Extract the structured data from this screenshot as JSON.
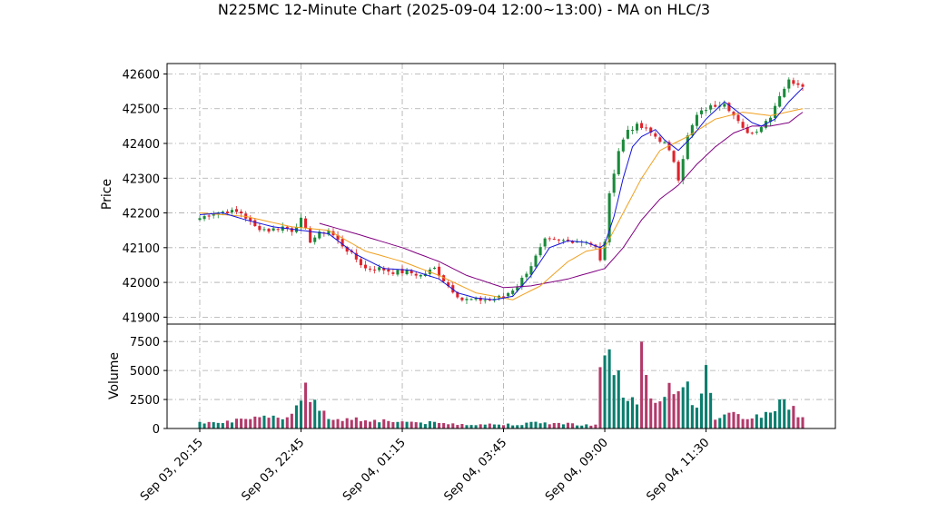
{
  "chart_data": {
    "type": "candlestick",
    "title": "N225MC 12-Minute Chart (2025-09-04 12:00~13:00) - MA on HLC/3",
    "price_panel": {
      "ylabel": "Price",
      "yticks": [
        41900,
        42000,
        42100,
        42200,
        42300,
        42400,
        42500,
        42600
      ],
      "ylim": [
        41880,
        42630
      ]
    },
    "volume_panel": {
      "ylabel": "Volume",
      "yticks": [
        0,
        2500,
        5000,
        7500
      ],
      "ylim": [
        0,
        9000
      ]
    },
    "xticks": [
      {
        "index": 0,
        "label": "Sep 03, 20:15"
      },
      {
        "index": 22,
        "label": "Sep 03, 22:45"
      },
      {
        "index": 44,
        "label": "Sep 04, 01:15"
      },
      {
        "index": 66,
        "label": "Sep 04, 03:45"
      },
      {
        "index": 88,
        "label": "Sep 04, 09:00"
      },
      {
        "index": 110,
        "label": "Sep 04, 11:30"
      }
    ],
    "price_anchors": [
      [
        0,
        42185
      ],
      [
        3,
        42200
      ],
      [
        6,
        42205
      ],
      [
        9,
        42200
      ],
      [
        12,
        42160
      ],
      [
        15,
        42150
      ],
      [
        18,
        42160
      ],
      [
        20,
        42150
      ],
      [
        22,
        42180
      ],
      [
        24,
        42120
      ],
      [
        26,
        42140
      ],
      [
        28,
        42150
      ],
      [
        30,
        42120
      ],
      [
        33,
        42080
      ],
      [
        36,
        42040
      ],
      [
        39,
        42040
      ],
      [
        42,
        42030
      ],
      [
        45,
        42030
      ],
      [
        48,
        42020
      ],
      [
        51,
        42040
      ],
      [
        54,
        41990
      ],
      [
        57,
        41950
      ],
      [
        60,
        41950
      ],
      [
        63,
        41950
      ],
      [
        66,
        41960
      ],
      [
        69,
        41990
      ],
      [
        72,
        42050
      ],
      [
        75,
        42120
      ],
      [
        78,
        42120
      ],
      [
        81,
        42120
      ],
      [
        84,
        42120
      ],
      [
        86,
        42100
      ],
      [
        87,
        42060
      ],
      [
        88,
        42120
      ],
      [
        89,
        42250
      ],
      [
        90,
        42320
      ],
      [
        91,
        42380
      ],
      [
        93,
        42440
      ],
      [
        95,
        42450
      ],
      [
        97,
        42440
      ],
      [
        99,
        42420
      ],
      [
        101,
        42400
      ],
      [
        103,
        42350
      ],
      [
        104,
        42300
      ],
      [
        106,
        42420
      ],
      [
        108,
        42480
      ],
      [
        110,
        42500
      ],
      [
        112,
        42510
      ],
      [
        114,
        42520
      ],
      [
        116,
        42480
      ],
      [
        118,
        42440
      ],
      [
        120,
        42430
      ],
      [
        122,
        42450
      ],
      [
        124,
        42480
      ],
      [
        126,
        42540
      ],
      [
        128,
        42580
      ],
      [
        131,
        42570
      ]
    ],
    "volume_anchors": [
      [
        0,
        600
      ],
      [
        10,
        700
      ],
      [
        20,
        1200
      ],
      [
        23,
        4200
      ],
      [
        25,
        2000
      ],
      [
        28,
        900
      ],
      [
        35,
        800
      ],
      [
        44,
        600
      ],
      [
        55,
        400
      ],
      [
        66,
        350
      ],
      [
        75,
        500
      ],
      [
        86,
        300
      ],
      [
        87,
        4300
      ],
      [
        88,
        8100
      ],
      [
        89,
        6500
      ],
      [
        90,
        5500
      ],
      [
        92,
        3000
      ],
      [
        95,
        2000
      ],
      [
        96,
        6300
      ],
      [
        98,
        2000
      ],
      [
        104,
        4300
      ],
      [
        108,
        2200
      ],
      [
        110,
        4400
      ],
      [
        112,
        1000
      ],
      [
        116,
        1200
      ],
      [
        120,
        900
      ],
      [
        124,
        1500
      ],
      [
        127,
        2400
      ],
      [
        131,
        900
      ]
    ],
    "ma_fast_anchors": [
      [
        0,
        42195
      ],
      [
        5,
        42200
      ],
      [
        10,
        42180
      ],
      [
        16,
        42160
      ],
      [
        22,
        42150
      ],
      [
        28,
        42140
      ],
      [
        34,
        42080
      ],
      [
        40,
        42040
      ],
      [
        46,
        42035
      ],
      [
        52,
        42010
      ],
      [
        56,
        41970
      ],
      [
        60,
        41955
      ],
      [
        64,
        41950
      ],
      [
        68,
        41960
      ],
      [
        72,
        42020
      ],
      [
        76,
        42100
      ],
      [
        80,
        42120
      ],
      [
        84,
        42115
      ],
      [
        87,
        42100
      ],
      [
        88,
        42110
      ],
      [
        90,
        42190
      ],
      [
        92,
        42300
      ],
      [
        94,
        42390
      ],
      [
        96,
        42420
      ],
      [
        99,
        42440
      ],
      [
        101,
        42410
      ],
      [
        104,
        42380
      ],
      [
        107,
        42420
      ],
      [
        110,
        42470
      ],
      [
        114,
        42520
      ],
      [
        118,
        42480
      ],
      [
        120,
        42460
      ],
      [
        122,
        42450
      ],
      [
        125,
        42470
      ],
      [
        128,
        42520
      ],
      [
        131,
        42560
      ]
    ],
    "ma_mid_anchors": [
      [
        0,
        42200
      ],
      [
        10,
        42190
      ],
      [
        20,
        42160
      ],
      [
        28,
        42150
      ],
      [
        36,
        42090
      ],
      [
        44,
        42060
      ],
      [
        52,
        42020
      ],
      [
        60,
        41970
      ],
      [
        68,
        41950
      ],
      [
        74,
        41990
      ],
      [
        80,
        42060
      ],
      [
        84,
        42090
      ],
      [
        88,
        42100
      ],
      [
        92,
        42200
      ],
      [
        96,
        42300
      ],
      [
        100,
        42380
      ],
      [
        106,
        42420
      ],
      [
        112,
        42470
      ],
      [
        118,
        42490
      ],
      [
        124,
        42480
      ],
      [
        131,
        42500
      ]
    ],
    "ma_slow_anchors": [
      [
        26,
        42170
      ],
      [
        34,
        42140
      ],
      [
        44,
        42100
      ],
      [
        52,
        42060
      ],
      [
        58,
        42020
      ],
      [
        66,
        41985
      ],
      [
        72,
        41990
      ],
      [
        80,
        42010
      ],
      [
        88,
        42040
      ],
      [
        92,
        42100
      ],
      [
        96,
        42180
      ],
      [
        100,
        42240
      ],
      [
        104,
        42280
      ],
      [
        108,
        42340
      ],
      [
        112,
        42390
      ],
      [
        116,
        42430
      ],
      [
        120,
        42450
      ],
      [
        124,
        42450
      ],
      [
        128,
        42460
      ],
      [
        131,
        42490
      ]
    ],
    "n_candles": 132,
    "colors": {
      "up": "#1a8a3a",
      "down": "#e0222a",
      "ma_fast": "#1515dd",
      "ma_mid": "#f0a020",
      "ma_slow": "#800080",
      "volume_up": "#0a7e6e",
      "volume_down": "#b23a6a",
      "grid": "#aaaaaa"
    }
  }
}
